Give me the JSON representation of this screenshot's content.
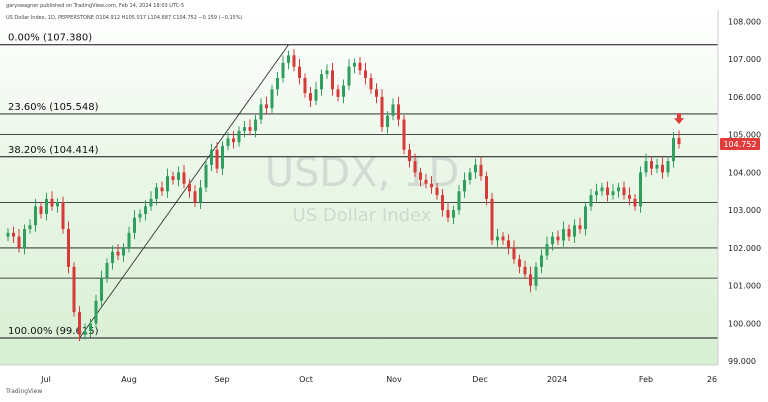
{
  "header": {
    "published": "garyswagner published on TradingView.com, Feb 14, 2024 18:03 UTC-5",
    "symbol_line": "US Dollar Index, 1D, PEPPERSTONE  O104.912  H105.017  L104.687  C104.752  −0.159 (−0.15%)"
  },
  "watermark": {
    "symbol": "USDX, 1D",
    "name": "US Dollar Index"
  },
  "footer": {
    "brand": "TradingView"
  },
  "last_price": {
    "label": "104.752",
    "color": "#e23b3b"
  },
  "colors": {
    "up": "#2f9e5f",
    "down": "#d63a3a",
    "grid": "#111111",
    "marker": "#e23b3b"
  },
  "chart_data": {
    "type": "candlestick",
    "title": "US Dollar Index",
    "timeframe": "1D",
    "ylim": [
      98.9,
      108.3
    ],
    "y_ticks": [
      "99.000",
      "100.000",
      "101.000",
      "102.000",
      "103.000",
      "104.000",
      "105.000",
      "106.000",
      "107.000",
      "108.000"
    ],
    "x_ticks": [
      "Jul",
      "Aug",
      "Sep",
      "Oct",
      "Nov",
      "Dec",
      "2024",
      "Feb",
      "26"
    ],
    "fib_levels": [
      {
        "label": "0.00% (107.380)",
        "value": 107.38
      },
      {
        "label": "23.60% (105.548)",
        "value": 105.548
      },
      {
        "label": "38.20% (104.414)",
        "value": 104.414
      },
      {
        "label": "100.00% (99.615)",
        "value": 99.615
      }
    ],
    "extra_levels": [
      105.0,
      103.2,
      102.0,
      101.2
    ],
    "trendline": {
      "from_price": 99.615,
      "to_price": 107.38
    },
    "close_series": [
      102.4,
      102.3,
      102.0,
      102.5,
      102.6,
      103.1,
      102.9,
      103.3,
      103.1,
      103.2,
      102.5,
      101.5,
      100.3,
      99.7,
      99.8,
      100.0,
      100.6,
      101.2,
      101.6,
      101.9,
      101.8,
      102.0,
      102.4,
      102.8,
      102.9,
      103.1,
      103.3,
      103.6,
      103.5,
      103.9,
      103.8,
      104.0,
      103.7,
      103.5,
      103.2,
      103.6,
      104.2,
      104.6,
      104.1,
      104.7,
      104.9,
      104.8,
      105.1,
      105.2,
      105.1,
      105.4,
      105.8,
      105.7,
      106.2,
      106.5,
      106.9,
      107.1,
      106.8,
      106.5,
      106.1,
      105.9,
      106.2,
      106.6,
      106.7,
      106.2,
      106.0,
      106.3,
      106.8,
      106.9,
      106.7,
      106.5,
      106.2,
      106.0,
      105.2,
      105.5,
      105.8,
      105.4,
      104.6,
      104.3,
      104.0,
      103.8,
      103.7,
      103.6,
      103.4,
      103.0,
      102.8,
      103.0,
      103.5,
      103.8,
      104.0,
      104.2,
      103.9,
      103.3,
      102.2,
      102.3,
      102.2,
      102.0,
      101.7,
      101.5,
      101.3,
      101.0,
      101.5,
      101.8,
      102.1,
      102.3,
      102.2,
      102.5,
      102.3,
      102.6,
      102.5,
      103.1,
      103.4,
      103.5,
      103.6,
      103.4,
      103.5,
      103.6,
      103.4,
      103.3,
      103.1,
      104.0,
      104.3,
      104.1,
      104.2,
      104.0,
      104.3,
      104.91,
      104.752
    ]
  }
}
